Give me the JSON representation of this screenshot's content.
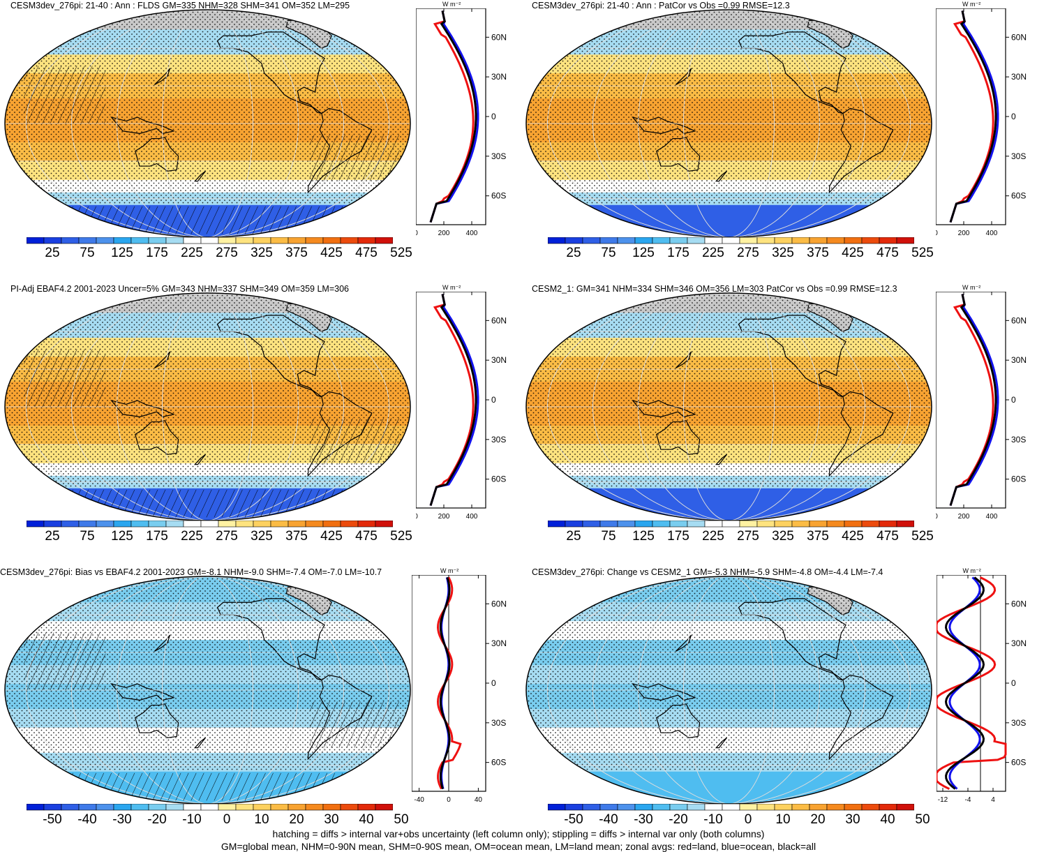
{
  "panels": [
    {
      "id": "p1",
      "title": "CESM3dev_276pi: 21-40 : Ann : FLDS GM=335 NHM=328 SHM=341 OM=352 LM=295",
      "map_kind": "abs",
      "hatching": true,
      "colorbar": {
        "labels": [
          "25",
          "75",
          "125",
          "175",
          "225",
          "275",
          "325",
          "375",
          "425",
          "475",
          "525"
        ],
        "colors": [
          "#0020d8",
          "#1a3fe0",
          "#2f5fe6",
          "#3f7ae9",
          "#4d92ec",
          "#2aa6ef",
          "#4fbdf0",
          "#79cdef",
          "#a6dcf2",
          "#ffffff",
          "#ffffff",
          "#fff2a2",
          "#fee37f",
          "#fdd15f",
          "#fbbc45",
          "#f8a331",
          "#f58a1f",
          "#f16f10",
          "#ec4b0d",
          "#e32a0a",
          "#d0100a"
        ]
      },
      "zonal": {
        "unit": "W m⁻²",
        "x_ticks": [
          "0",
          "200",
          "400"
        ],
        "y_ticks": [
          "60N",
          "30N",
          "0",
          "30S",
          "60S"
        ],
        "xlim": [
          0,
          500
        ]
      }
    },
    {
      "id": "p2",
      "title": "CESM3dev_276pi: 21-40 : Ann : PatCor vs Obs =0.99 RMSE=12.3",
      "map_kind": "abs",
      "hatching": false,
      "colorbar": {
        "labels": [
          "25",
          "75",
          "125",
          "175",
          "225",
          "275",
          "325",
          "375",
          "425",
          "475",
          "525"
        ],
        "colors": [
          "#0020d8",
          "#1a3fe0",
          "#2f5fe6",
          "#3f7ae9",
          "#4d92ec",
          "#2aa6ef",
          "#4fbdf0",
          "#79cdef",
          "#a6dcf2",
          "#ffffff",
          "#ffffff",
          "#fff2a2",
          "#fee37f",
          "#fdd15f",
          "#fbbc45",
          "#f8a331",
          "#f58a1f",
          "#f16f10",
          "#ec4b0d",
          "#e32a0a",
          "#d0100a"
        ]
      },
      "zonal": {
        "unit": "W m⁻²",
        "x_ticks": [
          "0",
          "200",
          "400"
        ],
        "y_ticks": [
          "60N",
          "30N",
          "0",
          "30S",
          "60S"
        ],
        "xlim": [
          0,
          500
        ]
      }
    },
    {
      "id": "p3",
      "title": "PI-Adj EBAF4.2 2001-2023 Uncer=5% GM=343 NHM=337 SHM=349 OM=359 LM=306",
      "map_kind": "abs",
      "hatching": true,
      "colorbar": {
        "labels": [
          "25",
          "75",
          "125",
          "175",
          "225",
          "275",
          "325",
          "375",
          "425",
          "475",
          "525"
        ],
        "colors": [
          "#0020d8",
          "#1a3fe0",
          "#2f5fe6",
          "#3f7ae9",
          "#4d92ec",
          "#2aa6ef",
          "#4fbdf0",
          "#79cdef",
          "#a6dcf2",
          "#ffffff",
          "#ffffff",
          "#fff2a2",
          "#fee37f",
          "#fdd15f",
          "#fbbc45",
          "#f8a331",
          "#f58a1f",
          "#f16f10",
          "#ec4b0d",
          "#e32a0a",
          "#d0100a"
        ]
      },
      "zonal": {
        "unit": "W m⁻²",
        "x_ticks": [
          "0",
          "200",
          "400"
        ],
        "y_ticks": [
          "60N",
          "30N",
          "0",
          "30S",
          "60S"
        ],
        "xlim": [
          0,
          500
        ]
      }
    },
    {
      "id": "p4",
      "title": "CESM2_1: GM=341 NHM=334 SHM=346 OM=356 LM=303 PatCor vs Obs =0.99 RMSE=12.3",
      "map_kind": "abs",
      "hatching": false,
      "colorbar": {
        "labels": [
          "25",
          "75",
          "125",
          "175",
          "225",
          "275",
          "325",
          "375",
          "425",
          "475",
          "525"
        ],
        "colors": [
          "#0020d8",
          "#1a3fe0",
          "#2f5fe6",
          "#3f7ae9",
          "#4d92ec",
          "#2aa6ef",
          "#4fbdf0",
          "#79cdef",
          "#a6dcf2",
          "#ffffff",
          "#ffffff",
          "#fff2a2",
          "#fee37f",
          "#fdd15f",
          "#fbbc45",
          "#f8a331",
          "#f58a1f",
          "#f16f10",
          "#ec4b0d",
          "#e32a0a",
          "#d0100a"
        ]
      },
      "zonal": {
        "unit": "W m⁻²",
        "x_ticks": [
          "0",
          "200",
          "400"
        ],
        "y_ticks": [
          "60N",
          "30N",
          "0",
          "30S",
          "60S"
        ],
        "xlim": [
          0,
          500
        ]
      }
    },
    {
      "id": "p5",
      "title": "CESM3dev_276pi: Bias vs EBAF4.2 2001-2023 GM=-8.1 NHM=-9.0 SHM=-7.4 OM=-7.0 LM=-10.7",
      "map_kind": "diff",
      "hatching": true,
      "colorbar": {
        "labels": [
          "-50",
          "-40",
          "-30",
          "-20",
          "-10",
          "0",
          "10",
          "20",
          "30",
          "40",
          "50"
        ],
        "colors": [
          "#0020d8",
          "#1a3fe0",
          "#2f5fe6",
          "#3f7ae9",
          "#4d92ec",
          "#2aa6ef",
          "#4fbdf0",
          "#79cdef",
          "#a6dcf2",
          "#ffffff",
          "#ffffff",
          "#fff2a2",
          "#fee37f",
          "#fdd15f",
          "#fbbc45",
          "#f8a331",
          "#f58a1f",
          "#f16f10",
          "#ec4b0d",
          "#e32a0a",
          "#d0100a"
        ]
      },
      "zonal": {
        "unit": "W m⁻²",
        "x_ticks": [
          "-40",
          "0",
          "40"
        ],
        "y_ticks": [
          "60N",
          "30N",
          "0",
          "30S",
          "60S"
        ],
        "xlim": [
          -50,
          50
        ]
      }
    },
    {
      "id": "p6",
      "title": "CESM3dev_276pi: Change vs CESM2_1 GM=-5.3 NHM=-5.9 SHM=-4.8 OM=-4.4 LM=-7.4",
      "map_kind": "diff",
      "hatching": false,
      "colorbar": {
        "labels": [
          "-50",
          "-40",
          "-30",
          "-20",
          "-10",
          "0",
          "10",
          "20",
          "30",
          "40",
          "50"
        ],
        "colors": [
          "#0020d8",
          "#1a3fe0",
          "#2f5fe6",
          "#3f7ae9",
          "#4d92ec",
          "#2aa6ef",
          "#4fbdf0",
          "#79cdef",
          "#a6dcf2",
          "#ffffff",
          "#ffffff",
          "#fff2a2",
          "#fee37f",
          "#fdd15f",
          "#fbbc45",
          "#f8a331",
          "#f58a1f",
          "#f16f10",
          "#ec4b0d",
          "#e32a0a",
          "#d0100a"
        ]
      },
      "zonal": {
        "unit": "W m⁻²",
        "x_ticks": [
          "-12",
          "-4",
          "4"
        ],
        "y_ticks": [
          "60N",
          "30N",
          "0",
          "30S",
          "60S"
        ],
        "xlim": [
          -14,
          8
        ]
      }
    }
  ],
  "footnotes": [
    "hatching = diffs > internal var+obs uncertainty (left column only); stippling = diffs > internal var only (both columns)",
    "GM=global mean, NHM=0-90N mean, SHM=0-90S mean, OM=ocean mean, LM=land mean; zonal avgs: red=land, blue=ocean, black=all"
  ],
  "colors": {
    "land_line": "#ee1111",
    "ocean_line": "#1111ee",
    "all_line": "#000000",
    "land_mask": "#c8c8c8"
  }
}
